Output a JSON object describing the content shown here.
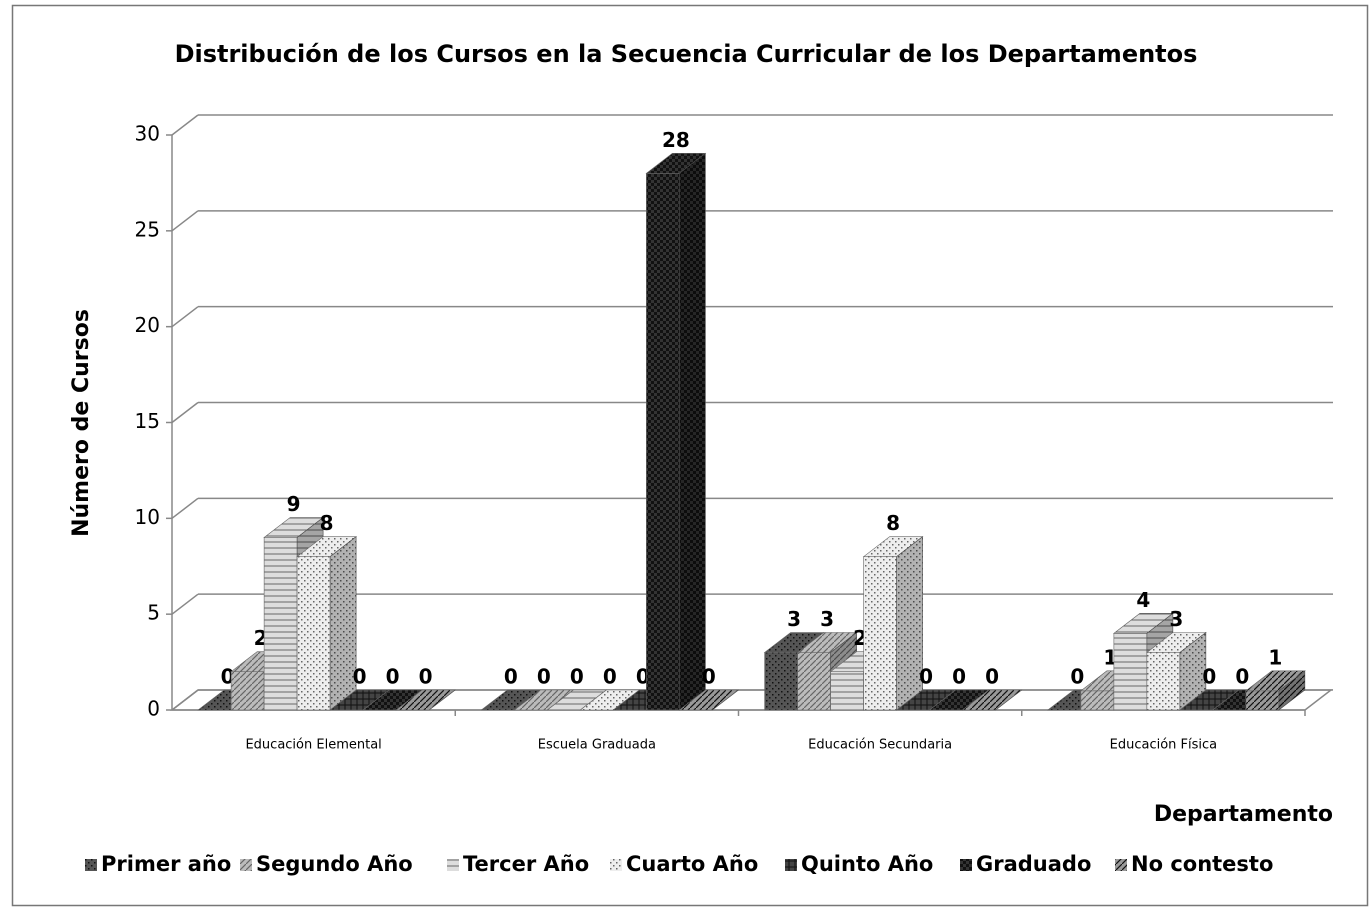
{
  "chart_data": {
    "type": "bar3d",
    "title": "Distribución de los Cursos en la Secuencia Curricular de los Departamentos",
    "y_label": "Número de Cursos",
    "x_label": "Departamento",
    "categories": [
      "Educación Elemental",
      "Escuela Graduada",
      "Educación Secundaria",
      "Educación Física"
    ],
    "series": [
      {
        "name": "Primer año",
        "color": "#555555",
        "values": [
          0,
          0,
          3,
          0
        ]
      },
      {
        "name": "Segundo Año",
        "color": "#bbbbbb",
        "values": [
          2,
          0,
          3,
          1
        ]
      },
      {
        "name": "Tercer Año",
        "color": "#dddddd",
        "values": [
          9,
          0,
          2,
          4
        ]
      },
      {
        "name": "Cuarto Año",
        "color": "#eeeeee",
        "values": [
          8,
          0,
          8,
          3
        ]
      },
      {
        "name": "Quinto Año",
        "color": "#444444",
        "values": [
          0,
          0,
          0,
          0
        ]
      },
      {
        "name": "Graduado",
        "color": "#333333",
        "values": [
          0,
          28,
          0,
          0
        ]
      },
      {
        "name": "No contesto",
        "color": "#999999",
        "values": [
          0,
          0,
          0,
          1
        ]
      }
    ],
    "ylim": [
      0,
      30
    ],
    "yticks": [
      0,
      5,
      10,
      15,
      20,
      25,
      30
    ],
    "grid": true,
    "legend": "bottom"
  }
}
